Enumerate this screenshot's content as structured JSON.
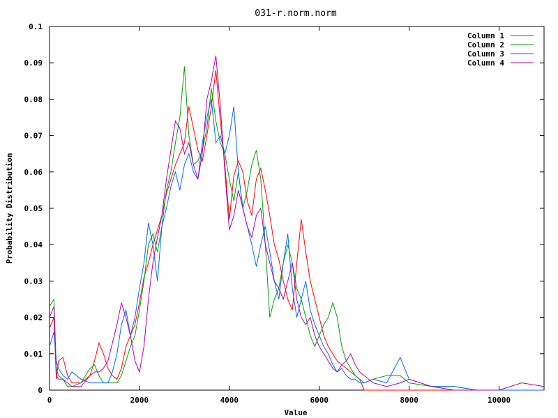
{
  "chart_data": {
    "type": "line",
    "title": "031-r.norm.norm",
    "xlabel": "Value",
    "ylabel": "Probability Distribution",
    "xlim": [
      0,
      11000
    ],
    "ylim": [
      0,
      0.1
    ],
    "xticks": [
      0,
      2000,
      4000,
      6000,
      8000,
      10000
    ],
    "xtick_labels": [
      "0",
      "2000",
      "4000",
      "6000",
      "8000",
      "10000"
    ],
    "yticks": [
      0,
      0.01,
      0.02,
      0.03,
      0.04,
      0.05,
      0.06,
      0.07,
      0.08,
      0.09,
      0.1
    ],
    "ytick_labels": [
      "0",
      "0.01",
      "0.02",
      "0.03",
      "0.04",
      "0.05",
      "0.06",
      "0.07",
      "0.08",
      "0.09",
      "0.1"
    ],
    "grid": false,
    "legend_position": "top-right",
    "series": [
      {
        "name": "Column 1",
        "color": "#ff0000",
        "x": [
          0,
          100,
          150,
          200,
          300,
          400,
          500,
          700,
          900,
          1000,
          1100,
          1200,
          1300,
          1400,
          1500,
          1600,
          1700,
          1800,
          1900,
          2000,
          2100,
          2200,
          2300,
          2400,
          2500,
          2600,
          2700,
          2800,
          2900,
          3000,
          3100,
          3200,
          3300,
          3400,
          3500,
          3600,
          3700,
          3800,
          3900,
          4000,
          4100,
          4200,
          4300,
          4400,
          4500,
          4600,
          4700,
          4800,
          4900,
          5000,
          5100,
          5200,
          5300,
          5400,
          5500,
          5600,
          5700,
          5800,
          5900,
          6000,
          6100,
          6200,
          6300,
          6400,
          6500,
          6600,
          6700,
          6800,
          6900,
          7000,
          7200,
          7500,
          7800,
          8000,
          8500,
          9000,
          9500,
          10000,
          10500,
          11000
        ],
        "y": [
          0.017,
          0.02,
          0.003,
          0.008,
          0.009,
          0.004,
          0.002,
          0.002,
          0.004,
          0.008,
          0.013,
          0.01,
          0.006,
          0.004,
          0.003,
          0.006,
          0.012,
          0.015,
          0.018,
          0.024,
          0.031,
          0.035,
          0.04,
          0.044,
          0.048,
          0.054,
          0.058,
          0.062,
          0.065,
          0.068,
          0.078,
          0.072,
          0.066,
          0.063,
          0.07,
          0.078,
          0.088,
          0.074,
          0.062,
          0.047,
          0.059,
          0.063,
          0.06,
          0.052,
          0.048,
          0.058,
          0.061,
          0.055,
          0.048,
          0.04,
          0.036,
          0.03,
          0.025,
          0.022,
          0.035,
          0.047,
          0.038,
          0.03,
          0.025,
          0.02,
          0.015,
          0.012,
          0.01,
          0.008,
          0.007,
          0.006,
          0.005,
          0.004,
          0.003,
          0.0,
          0.0,
          0.0,
          0.0,
          0.0,
          0.0,
          0.0,
          0.0,
          0.0,
          0.0,
          0.0
        ]
      },
      {
        "name": "Column 2",
        "color": "#00a000",
        "x": [
          0,
          100,
          150,
          200,
          300,
          400,
          500,
          700,
          900,
          1000,
          1100,
          1200,
          1300,
          1400,
          1500,
          1600,
          1700,
          1800,
          1900,
          2000,
          2100,
          2200,
          2300,
          2400,
          2500,
          2600,
          2700,
          2800,
          2900,
          3000,
          3100,
          3200,
          3300,
          3400,
          3500,
          3600,
          3700,
          3800,
          3900,
          4000,
          4100,
          4200,
          4300,
          4400,
          4500,
          4600,
          4700,
          4800,
          4900,
          5000,
          5100,
          5200,
          5300,
          5400,
          5500,
          5600,
          5700,
          5800,
          5900,
          6000,
          6100,
          6200,
          6300,
          6400,
          6500,
          6600,
          6700,
          6800,
          6900,
          7000,
          7200,
          7500,
          7800,
          8000,
          8500,
          9000,
          9500,
          10000,
          10500,
          11000
        ],
        "y": [
          0.023,
          0.025,
          0.006,
          0.004,
          0.003,
          0.001,
          0.001,
          0.002,
          0.006,
          0.007,
          0.004,
          0.002,
          0.002,
          0.002,
          0.002,
          0.004,
          0.008,
          0.012,
          0.015,
          0.022,
          0.03,
          0.04,
          0.043,
          0.038,
          0.045,
          0.055,
          0.06,
          0.068,
          0.075,
          0.089,
          0.07,
          0.062,
          0.063,
          0.066,
          0.072,
          0.083,
          0.074,
          0.068,
          0.065,
          0.058,
          0.052,
          0.06,
          0.05,
          0.055,
          0.062,
          0.066,
          0.058,
          0.04,
          0.02,
          0.025,
          0.028,
          0.035,
          0.04,
          0.035,
          0.028,
          0.025,
          0.02,
          0.015,
          0.012,
          0.015,
          0.018,
          0.02,
          0.024,
          0.02,
          0.012,
          0.008,
          0.006,
          0.004,
          0.003,
          0.002,
          0.003,
          0.004,
          0.004,
          0.002,
          0.001,
          0.001,
          0.0,
          0.0,
          0.0,
          0.0
        ]
      },
      {
        "name": "Column 3",
        "color": "#0066ff",
        "x": [
          0,
          100,
          150,
          200,
          300,
          400,
          500,
          700,
          900,
          1000,
          1100,
          1200,
          1300,
          1400,
          1500,
          1600,
          1700,
          1800,
          1900,
          2000,
          2100,
          2200,
          2300,
          2400,
          2500,
          2600,
          2700,
          2800,
          2900,
          3000,
          3100,
          3200,
          3300,
          3400,
          3500,
          3600,
          3700,
          3800,
          3900,
          4000,
          4100,
          4200,
          4300,
          4400,
          4500,
          4600,
          4700,
          4800,
          4900,
          5000,
          5100,
          5200,
          5300,
          5400,
          5500,
          5600,
          5700,
          5800,
          5900,
          6000,
          6100,
          6200,
          6300,
          6400,
          6500,
          6600,
          6700,
          6800,
          6900,
          7000,
          7200,
          7500,
          7800,
          8000,
          8500,
          9000,
          9500,
          10000,
          10500,
          11000
        ],
        "y": [
          0.012,
          0.016,
          0.008,
          0.006,
          0.004,
          0.003,
          0.005,
          0.003,
          0.002,
          0.002,
          0.002,
          0.002,
          0.002,
          0.005,
          0.01,
          0.018,
          0.022,
          0.015,
          0.02,
          0.028,
          0.035,
          0.046,
          0.04,
          0.03,
          0.045,
          0.05,
          0.056,
          0.06,
          0.055,
          0.062,
          0.065,
          0.06,
          0.058,
          0.068,
          0.075,
          0.08,
          0.068,
          0.07,
          0.065,
          0.07,
          0.078,
          0.06,
          0.05,
          0.045,
          0.04,
          0.034,
          0.04,
          0.045,
          0.038,
          0.03,
          0.025,
          0.035,
          0.043,
          0.028,
          0.02,
          0.025,
          0.03,
          0.022,
          0.018,
          0.015,
          0.012,
          0.01,
          0.007,
          0.005,
          0.006,
          0.004,
          0.003,
          0.003,
          0.002,
          0.002,
          0.003,
          0.002,
          0.009,
          0.003,
          0.001,
          0.001,
          0.0,
          0.0,
          0.0,
          0.0
        ]
      },
      {
        "name": "Column 4",
        "color": "#b000b0",
        "x": [
          0,
          100,
          150,
          200,
          300,
          400,
          500,
          700,
          900,
          1000,
          1100,
          1200,
          1300,
          1400,
          1500,
          1600,
          1700,
          1800,
          1900,
          2000,
          2100,
          2200,
          2300,
          2400,
          2500,
          2600,
          2700,
          2800,
          2900,
          3000,
          3100,
          3200,
          3300,
          3400,
          3500,
          3600,
          3700,
          3800,
          3900,
          4000,
          4100,
          4200,
          4300,
          4400,
          4500,
          4600,
          4700,
          4800,
          4900,
          5000,
          5100,
          5200,
          5300,
          5400,
          5500,
          5600,
          5700,
          5800,
          5900,
          6000,
          6100,
          6200,
          6300,
          6400,
          6500,
          6600,
          6700,
          6800,
          6900,
          7000,
          7200,
          7500,
          7800,
          8000,
          8500,
          9000,
          9500,
          10000,
          10500,
          11000
        ],
        "y": [
          0.02,
          0.023,
          0.004,
          0.003,
          0.003,
          0.002,
          0.001,
          0.001,
          0.004,
          0.005,
          0.005,
          0.006,
          0.008,
          0.013,
          0.018,
          0.024,
          0.02,
          0.015,
          0.008,
          0.005,
          0.012,
          0.025,
          0.035,
          0.042,
          0.048,
          0.058,
          0.066,
          0.074,
          0.072,
          0.065,
          0.068,
          0.062,
          0.058,
          0.065,
          0.08,
          0.085,
          0.092,
          0.078,
          0.06,
          0.044,
          0.048,
          0.055,
          0.05,
          0.045,
          0.042,
          0.048,
          0.05,
          0.04,
          0.035,
          0.03,
          0.028,
          0.025,
          0.03,
          0.035,
          0.025,
          0.02,
          0.018,
          0.02,
          0.015,
          0.012,
          0.01,
          0.008,
          0.006,
          0.005,
          0.007,
          0.008,
          0.01,
          0.007,
          0.005,
          0.004,
          0.002,
          0.001,
          0.002,
          0.003,
          0.001,
          0.0,
          0.0,
          0.0,
          0.002,
          0.001
        ]
      }
    ]
  }
}
